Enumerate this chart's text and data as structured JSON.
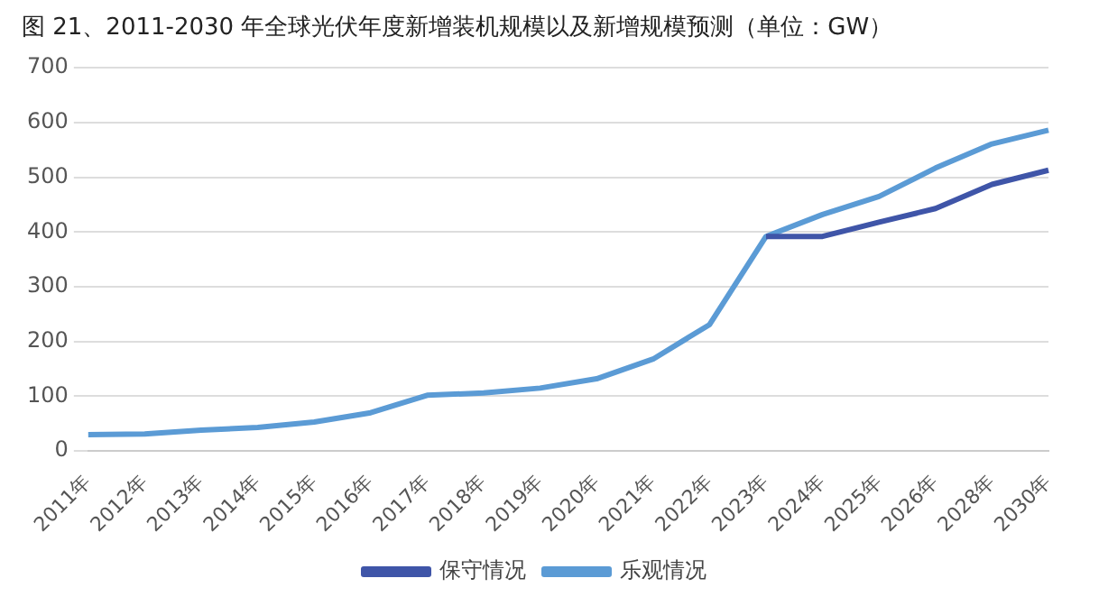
{
  "chart_data": {
    "type": "line",
    "title": "图 21、2011-2030 年全球光伏年度新增装机规模以及新增规模预测（单位：GW）",
    "categories": [
      "2011年",
      "2012年",
      "2013年",
      "2014年",
      "2015年",
      "2016年",
      "2017年",
      "2018年",
      "2019年",
      "2020年",
      "2021年",
      "2022年",
      "2023年",
      "2024年",
      "2025年",
      "2026年",
      "2028年",
      "2030年"
    ],
    "series": [
      {
        "name": "保守情况",
        "color": "#3f55a8",
        "values": [
          null,
          null,
          null,
          null,
          null,
          null,
          null,
          null,
          null,
          null,
          null,
          null,
          392,
          392,
          418,
          443,
          487,
          513
        ]
      },
      {
        "name": "乐观情况",
        "color": "#5b9bd5",
        "values": [
          30,
          31,
          38,
          43,
          53,
          70,
          102,
          106,
          115,
          132,
          168,
          231,
          392,
          432,
          465,
          517,
          561,
          586
        ]
      }
    ],
    "ylim": [
      0,
      700
    ],
    "yticks": [
      0,
      100,
      200,
      300,
      400,
      500,
      600,
      700
    ],
    "grid": "y",
    "legend": "bottom"
  }
}
